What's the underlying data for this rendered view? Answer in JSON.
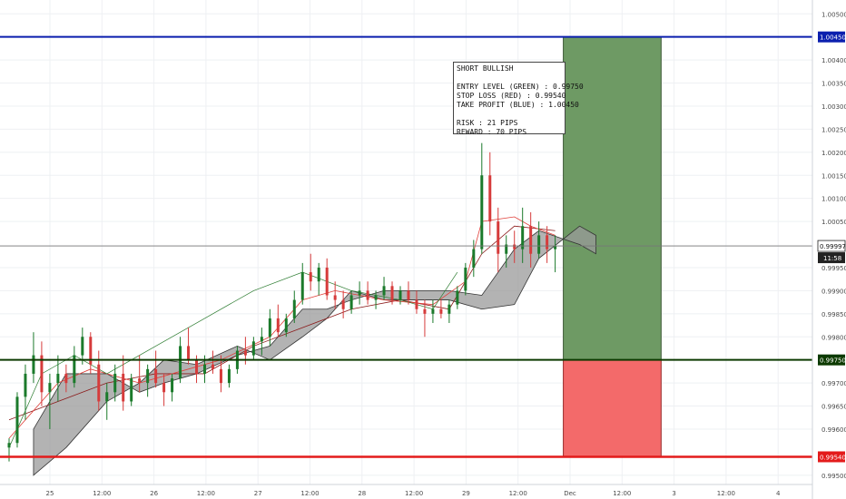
{
  "chart_data": {
    "type": "candlestick",
    "instrument_note": {
      "lines": [
        "SHORT BULLISH",
        "",
        "ENTRY LEVEL (GREEN) : 0.99750",
        "STOP LOSS (RED) : 0.99540",
        "TAKE PROFIT (BLUE) : 1.00450",
        "",
        "RISK : 21 PIPS",
        "REWARD : 70 PIPS"
      ]
    },
    "x_ticks": [
      "25",
      "12:00",
      "26",
      "12:00",
      "27",
      "12:00",
      "28",
      "12:00",
      "29",
      "12:00",
      "Dec",
      "12:00",
      "3",
      "12:00",
      "4"
    ],
    "y_ticks": [
      "1.00500",
      "1.00450",
      "1.00400",
      "1.00350",
      "1.00300",
      "1.00250",
      "1.00200",
      "1.00150",
      "1.00100",
      "1.00050",
      "0.99997",
      "0.99950",
      "0.99900",
      "0.99850",
      "0.99800",
      "0.99750",
      "0.99700",
      "0.99650",
      "0.99600",
      "0.99540",
      "0.99500"
    ],
    "ylim": [
      0.9948,
      1.0053
    ],
    "xlim": [
      0,
      96
    ],
    "levels": {
      "take_profit": {
        "value": 1.0045,
        "label": "1.00450",
        "color": "#0b1fae"
      },
      "entry": {
        "value": 0.9975,
        "label": "0.99750",
        "color": "#0c3a00"
      },
      "stop_loss": {
        "value": 0.9954,
        "label": "0.99540",
        "color": "#e31b1b"
      },
      "current": {
        "value": 0.99997,
        "label": "0.99997",
        "countdown": "11:58",
        "color": "#222222"
      }
    },
    "positions": {
      "profit_zone": {
        "x_start": 68,
        "x_end": 80,
        "y_low": 0.9975,
        "y_high": 1.0045,
        "color": "#6e9a64"
      },
      "loss_zone": {
        "x_start": 68,
        "x_end": 80,
        "y_low": 0.9954,
        "y_high": 0.9975,
        "color": "#f36a6a"
      }
    },
    "candles": [
      [
        0.9956,
        0.9958,
        0.9953,
        0.9957
      ],
      [
        0.9957,
        0.9968,
        0.9956,
        0.9967
      ],
      [
        0.9967,
        0.9974,
        0.9962,
        0.9972
      ],
      [
        0.9972,
        0.9981,
        0.997,
        0.9976
      ],
      [
        0.9976,
        0.9979,
        0.9965,
        0.9968
      ],
      [
        0.9968,
        0.9972,
        0.996,
        0.997
      ],
      [
        0.997,
        0.9976,
        0.9966,
        0.9972
      ],
      [
        0.9972,
        0.9974,
        0.9968,
        0.997
      ],
      [
        0.997,
        0.9978,
        0.9969,
        0.9976
      ],
      [
        0.9976,
        0.9982,
        0.9974,
        0.998
      ],
      [
        0.998,
        0.9981,
        0.9972,
        0.9974
      ],
      [
        0.9974,
        0.9977,
        0.9964,
        0.9966
      ],
      [
        0.9966,
        0.997,
        0.9962,
        0.9968
      ],
      [
        0.9968,
        0.9974,
        0.9966,
        0.9972
      ],
      [
        0.9972,
        0.9976,
        0.9964,
        0.9966
      ],
      [
        0.9966,
        0.9972,
        0.9965,
        0.9971
      ],
      [
        0.9971,
        0.9976,
        0.9968,
        0.997
      ],
      [
        0.997,
        0.9974,
        0.9967,
        0.9973
      ],
      [
        0.9973,
        0.9977,
        0.9969,
        0.997
      ],
      [
        0.997,
        0.9972,
        0.9965,
        0.9968
      ],
      [
        0.9968,
        0.9972,
        0.9966,
        0.9971
      ],
      [
        0.9971,
        0.998,
        0.997,
        0.9978
      ],
      [
        0.9978,
        0.9982,
        0.9974,
        0.9975
      ],
      [
        0.9975,
        0.9976,
        0.997,
        0.9972
      ],
      [
        0.9972,
        0.9976,
        0.997,
        0.9974
      ],
      [
        0.9974,
        0.9977,
        0.9972,
        0.9973
      ],
      [
        0.9973,
        0.9976,
        0.9968,
        0.997
      ],
      [
        0.997,
        0.9974,
        0.9969,
        0.9973
      ],
      [
        0.9973,
        0.9978,
        0.9972,
        0.9977
      ],
      [
        0.9977,
        0.998,
        0.9974,
        0.9976
      ],
      [
        0.9976,
        0.998,
        0.9975,
        0.9979
      ],
      [
        0.9979,
        0.9982,
        0.9976,
        0.998
      ],
      [
        0.998,
        0.9986,
        0.9978,
        0.9984
      ],
      [
        0.9984,
        0.9987,
        0.998,
        0.9981
      ],
      [
        0.9981,
        0.9985,
        0.998,
        0.9984
      ],
      [
        0.9984,
        0.999,
        0.9983,
        0.9988
      ],
      [
        0.9988,
        0.9996,
        0.9987,
        0.9994
      ],
      [
        0.9994,
        0.9998,
        0.999,
        0.9992
      ],
      [
        0.9992,
        0.9996,
        0.9989,
        0.9995
      ],
      [
        0.9995,
        0.9997,
        0.9988,
        0.9989
      ],
      [
        0.9989,
        0.9992,
        0.9986,
        0.9988
      ],
      [
        0.9988,
        0.999,
        0.9984,
        0.9986
      ],
      [
        0.9986,
        0.999,
        0.9985,
        0.9989
      ],
      [
        0.9989,
        0.9992,
        0.9987,
        0.999
      ],
      [
        0.999,
        0.9992,
        0.9987,
        0.9988
      ],
      [
        0.9988,
        0.999,
        0.9986,
        0.9989
      ],
      [
        0.9989,
        0.9993,
        0.9988,
        0.9991
      ],
      [
        0.9991,
        0.9992,
        0.9987,
        0.9988
      ],
      [
        0.9988,
        0.9991,
        0.9987,
        0.999
      ],
      [
        0.999,
        0.9992,
        0.9987,
        0.9988
      ],
      [
        0.9988,
        0.999,
        0.9985,
        0.9986
      ],
      [
        0.9986,
        0.9988,
        0.998,
        0.9985
      ],
      [
        0.9985,
        0.9988,
        0.9983,
        0.9986
      ],
      [
        0.9986,
        0.9988,
        0.9984,
        0.9985
      ],
      [
        0.9985,
        0.9988,
        0.9983,
        0.9987
      ],
      [
        0.9987,
        0.9991,
        0.9986,
        0.999
      ],
      [
        0.999,
        0.9996,
        0.9989,
        0.9995
      ],
      [
        0.9995,
        1.0001,
        0.9993,
        0.9999
      ],
      [
        0.9999,
        1.0022,
        0.9998,
        1.0015
      ],
      [
        1.0015,
        1.002,
        1.0002,
        1.0005
      ],
      [
        1.0005,
        1.0008,
        0.9994,
        0.9998
      ],
      [
        0.9998,
        1.0002,
        0.9995,
        1.0
      ],
      [
        1.0,
        1.0003,
        0.9996,
        0.9999
      ],
      [
        0.9999,
        1.0008,
        0.9996,
        1.0004
      ],
      [
        1.0004,
        1.0007,
        0.9995,
        0.9998
      ],
      [
        0.9998,
        1.0005,
        0.9997,
        1.0002
      ],
      [
        1.0002,
        1.0004,
        0.9996,
        0.9999
      ],
      [
        0.9999,
        1.0002,
        0.9994,
        0.99997
      ]
    ],
    "cloud": {
      "span_a": [
        [
          3,
          0.995
        ],
        [
          7,
          0.9956
        ],
        [
          12,
          0.9966
        ],
        [
          16,
          0.997
        ],
        [
          19,
          0.9975
        ],
        [
          23,
          0.9974
        ],
        [
          28,
          0.9978
        ],
        [
          32,
          0.9975
        ],
        [
          36,
          0.998
        ],
        [
          39,
          0.9984
        ],
        [
          42,
          0.999
        ],
        [
          46,
          0.9988
        ],
        [
          50,
          0.9988
        ],
        [
          54,
          0.9988
        ],
        [
          58,
          0.9986
        ],
        [
          62,
          0.9987
        ],
        [
          65,
          0.9997
        ],
        [
          70,
          1.0004
        ],
        [
          72,
          1.0002
        ]
      ],
      "span_b": [
        [
          3,
          0.996
        ],
        [
          7,
          0.9972
        ],
        [
          12,
          0.9972
        ],
        [
          16,
          0.9968
        ],
        [
          19,
          0.997
        ],
        [
          23,
          0.9972
        ],
        [
          28,
          0.9976
        ],
        [
          32,
          0.9978
        ],
        [
          36,
          0.9986
        ],
        [
          39,
          0.9986
        ],
        [
          42,
          0.9988
        ],
        [
          46,
          0.999
        ],
        [
          50,
          0.999
        ],
        [
          54,
          0.999
        ],
        [
          58,
          0.9989
        ],
        [
          62,
          0.9999
        ],
        [
          65,
          1.0003
        ],
        [
          70,
          1.0
        ],
        [
          72,
          0.9998
        ]
      ]
    },
    "tenkan": [
      [
        0,
        0.9958
      ],
      [
        6,
        0.997
      ],
      [
        10,
        0.9973
      ],
      [
        16,
        0.997
      ],
      [
        20,
        0.9972
      ],
      [
        26,
        0.9975
      ],
      [
        32,
        0.998
      ],
      [
        36,
        0.9988
      ],
      [
        40,
        0.999
      ],
      [
        46,
        0.9988
      ],
      [
        52,
        0.9987
      ],
      [
        56,
        0.9992
      ],
      [
        58,
        1.0005
      ],
      [
        62,
        1.0006
      ],
      [
        64,
        1.0004
      ],
      [
        67,
        1.0002
      ]
    ],
    "kijun": [
      [
        0,
        0.9962
      ],
      [
        6,
        0.9966
      ],
      [
        12,
        0.997
      ],
      [
        18,
        0.9972
      ],
      [
        24,
        0.9972
      ],
      [
        30,
        0.9978
      ],
      [
        36,
        0.9982
      ],
      [
        42,
        0.9986
      ],
      [
        48,
        0.9988
      ],
      [
        54,
        0.9986
      ],
      [
        58,
        0.9998
      ],
      [
        62,
        1.0004
      ],
      [
        67,
        1.0003
      ]
    ],
    "chikou": [
      [
        0,
        0.9956
      ],
      [
        4,
        0.9972
      ],
      [
        8,
        0.9976
      ],
      [
        12,
        0.9972
      ],
      [
        18,
        0.9978
      ],
      [
        24,
        0.9984
      ],
      [
        30,
        0.999
      ],
      [
        36,
        0.9994
      ],
      [
        42,
        0.999
      ],
      [
        48,
        0.9988
      ],
      [
        52,
        0.9986
      ],
      [
        55,
        0.9994
      ]
    ]
  }
}
